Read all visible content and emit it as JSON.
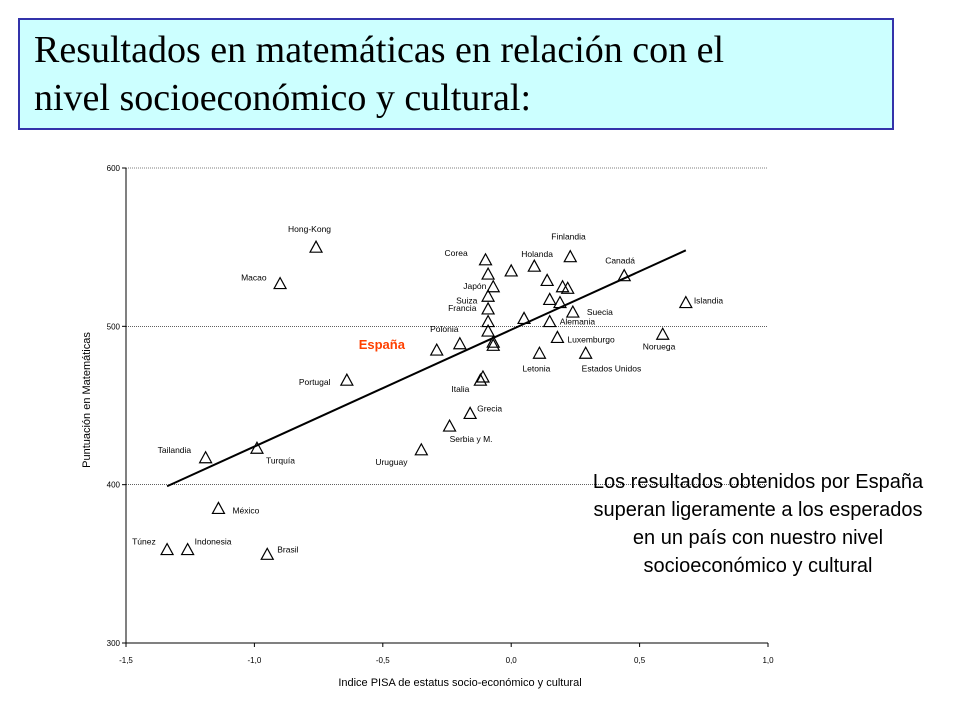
{
  "title_lines": [
    "Resultados en matemáticas en relación con el",
    "nivel socioeconómico y cultural:"
  ],
  "note_text": "Los resultados obtenidos por España superan ligeramente a los esperados en un país con nuestro nivel socioeconómico y cultural",
  "chart_data": {
    "type": "scatter",
    "xlabel": "Indice PISA de estatus socio-económico y cultural",
    "ylabel": "Puntuación en Matemáticas",
    "xlim": [
      -1.5,
      1.0
    ],
    "ylim": [
      300,
      600
    ],
    "x_ticks": [
      "-1,5",
      "-1,0",
      "-0,5",
      "0,0",
      "0,5",
      "1,0"
    ],
    "y_ticks": [
      "300",
      "400",
      "500",
      "600"
    ],
    "highlight_color": "#ff4000",
    "trend_line": {
      "x": [
        -1.34,
        0.68
      ],
      "y": [
        399,
        548
      ]
    },
    "points": [
      {
        "label": "Hong-Kong",
        "x": -0.76,
        "y": 550
      },
      {
        "label": "Macao",
        "x": -0.9,
        "y": 527
      },
      {
        "label": "Corea",
        "x": -0.1,
        "y": 542
      },
      {
        "label": "",
        "x": -0.09,
        "y": 533
      },
      {
        "label": "",
        "x": 0.0,
        "y": 535
      },
      {
        "label": "Japón",
        "x": -0.07,
        "y": 525
      },
      {
        "label": "Holanda",
        "x": 0.09,
        "y": 538
      },
      {
        "label": "",
        "x": 0.14,
        "y": 529
      },
      {
        "label": "Finlandia",
        "x": 0.23,
        "y": 544
      },
      {
        "label": "Canadá",
        "x": 0.44,
        "y": 532
      },
      {
        "label": "Suiza",
        "x": -0.09,
        "y": 519
      },
      {
        "label": "",
        "x": 0.2,
        "y": 525
      },
      {
        "label": "",
        "x": 0.22,
        "y": 524
      },
      {
        "label": "",
        "x": 0.15,
        "y": 517
      },
      {
        "label": "",
        "x": 0.19,
        "y": 515
      },
      {
        "label": "Francia",
        "x": -0.09,
        "y": 511
      },
      {
        "label": "Suecia",
        "x": 0.24,
        "y": 509
      },
      {
        "label": "Islandia",
        "x": 0.68,
        "y": 515
      },
      {
        "label": "",
        "x": 0.05,
        "y": 505
      },
      {
        "label": "Alemania",
        "x": 0.15,
        "y": 503
      },
      {
        "label": "",
        "x": -0.09,
        "y": 503
      },
      {
        "label": "Polonia",
        "x": -0.09,
        "y": 497
      },
      {
        "label": "Luxemburgo",
        "x": 0.18,
        "y": 493
      },
      {
        "label": "Noruega",
        "x": 0.59,
        "y": 495
      },
      {
        "label": "",
        "x": -0.07,
        "y": 490
      },
      {
        "label": "",
        "x": -0.2,
        "y": 489
      },
      {
        "label": "",
        "x": -0.07,
        "y": 488
      },
      {
        "label": "España",
        "x": -0.29,
        "y": 485,
        "highlight": true
      },
      {
        "label": "Letonia",
        "x": 0.11,
        "y": 483
      },
      {
        "label": "Estados Unidos",
        "x": 0.29,
        "y": 483
      },
      {
        "label": "Portugal",
        "x": -0.64,
        "y": 466
      },
      {
        "label": "",
        "x": -0.11,
        "y": 468
      },
      {
        "label": "Italia",
        "x": -0.12,
        "y": 466
      },
      {
        "label": "Grecia",
        "x": -0.16,
        "y": 445
      },
      {
        "label": "Serbia y M.",
        "x": -0.24,
        "y": 437
      },
      {
        "label": "Uruguay",
        "x": -0.35,
        "y": 422
      },
      {
        "label": "Turquía",
        "x": -0.99,
        "y": 423
      },
      {
        "label": "Tailandia",
        "x": -1.19,
        "y": 417
      },
      {
        "label": "México",
        "x": -1.14,
        "y": 385
      },
      {
        "label": "Túnez",
        "x": -1.34,
        "y": 359
      },
      {
        "label": "Indonesia",
        "x": -1.26,
        "y": 359
      },
      {
        "label": "Brasil",
        "x": -0.95,
        "y": 356
      }
    ]
  }
}
